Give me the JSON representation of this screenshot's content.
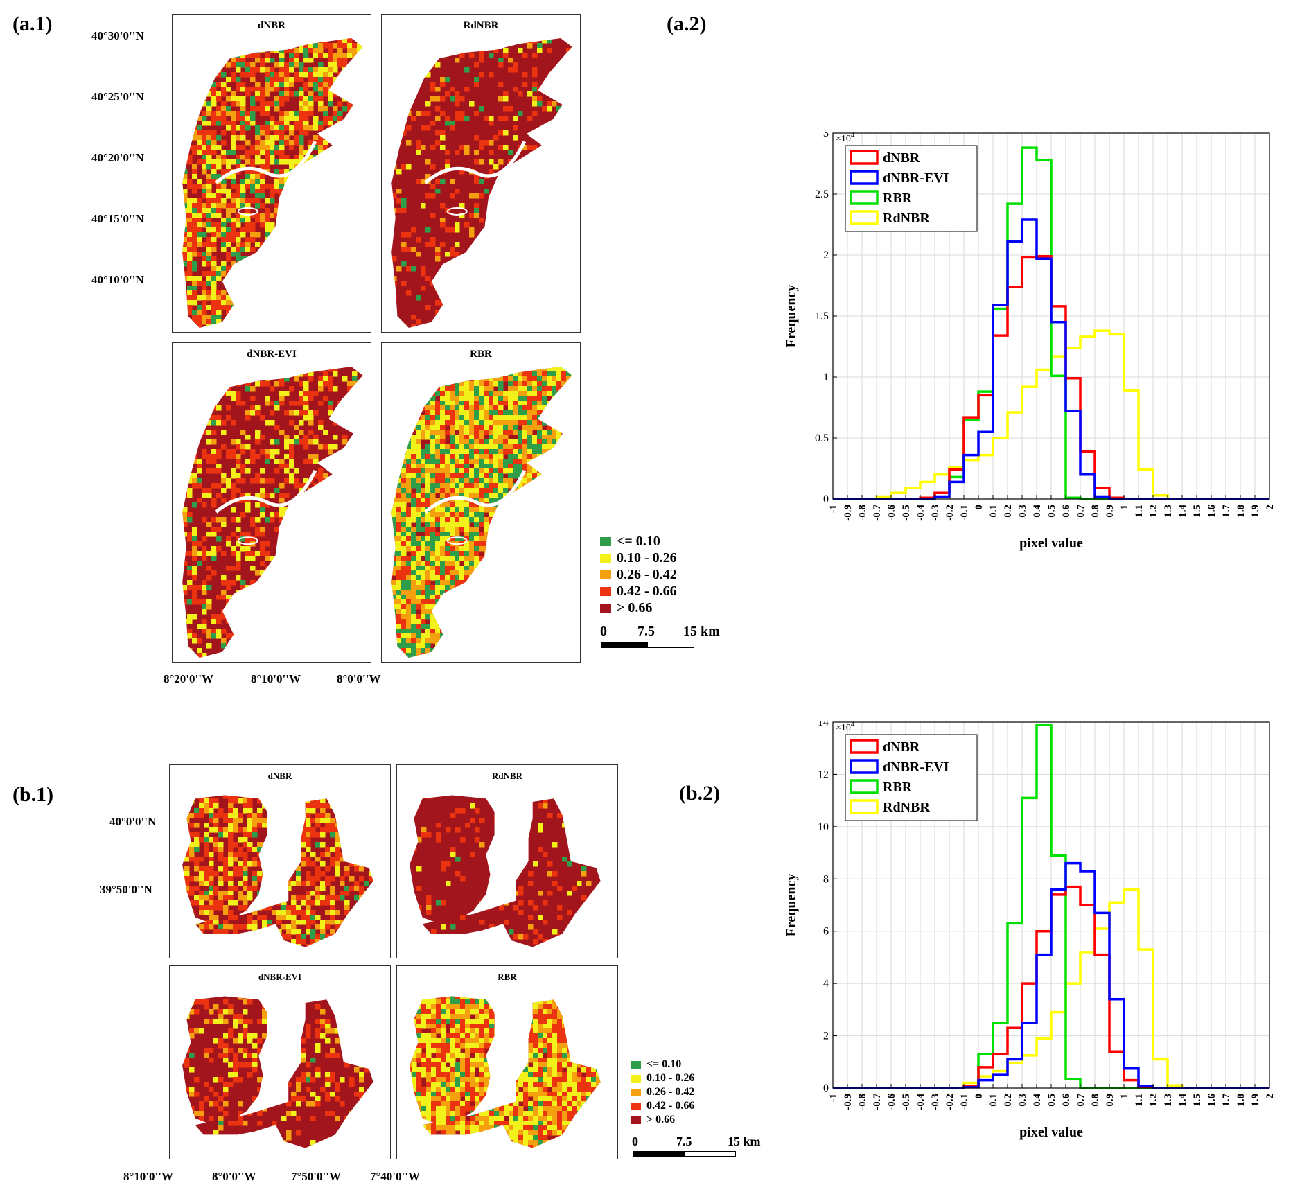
{
  "panel_labels": {
    "a1": "(a.1)",
    "a2": "(a.2)",
    "b1": "(b.1)",
    "b2": "(b.2)"
  },
  "colors": {
    "c1": "#2e9e4a",
    "c2": "#f2f21a",
    "c3": "#f5a00f",
    "c4": "#ec3310",
    "c5": "#a3151c",
    "dNBR": "#ff0000",
    "dNBR-EVI": "#0000ff",
    "RBR": "#00e000",
    "RdNBR": "#ffff00"
  },
  "legend_a": {
    "items": [
      "<= 0.10",
      "0.10 - 0.26",
      "0.26 - 0.42",
      "0.42 - 0.66",
      "> 0.66"
    ],
    "scale": {
      "start": "0",
      "mid": "7.5",
      "end": "15 km"
    }
  },
  "legend_b": {
    "items": [
      "<= 0.10",
      "0.10 - 0.26",
      "0.26 - 0.42",
      "0.42 - 0.66",
      "> 0.66"
    ],
    "scale": {
      "start": "0",
      "mid": "7.5",
      "end": "15 km"
    }
  },
  "maps_a": {
    "titles": {
      "tl": "dNBR",
      "tr": "RdNBR",
      "bl": "dNBR-EVI",
      "br": "RBR"
    },
    "lat": [
      "40°30'0''N",
      "40°25'0''N",
      "40°20'0''N",
      "40°15'0''N",
      "40°10'0''N"
    ],
    "lon": [
      "8°20'0''W",
      "8°10'0''W",
      "8°0'0''W"
    ]
  },
  "maps_b": {
    "titles": {
      "tl": "dNBR",
      "tr": "RdNBR",
      "bl": "dNBR-EVI",
      "br": "RBR"
    },
    "lat": [
      "40°0'0''N",
      "39°50'0''N"
    ],
    "lon": [
      "8°10'0''W",
      "8°0'0''W",
      "7°50'0''W",
      "7°40'0''W"
    ]
  },
  "chart_data": [
    {
      "id": "a2",
      "type": "histogram-step",
      "xlabel": "pixel value",
      "ylabel": "Frequency",
      "y_exponent": "×10^4",
      "xlim": [
        -1,
        2
      ],
      "ylim": [
        0,
        3
      ],
      "x_ticks": [
        "-1",
        "-0.9",
        "-0.8",
        "-0.7",
        "-0.6",
        "-0.5",
        "-0.4",
        "-0.3",
        "-0.2",
        "-0.1",
        "0",
        "0.1",
        "0.2",
        "0.3",
        "0.4",
        "0.5",
        "0.6",
        "0.7",
        "0.8",
        "0.9",
        "1",
        "1.1",
        "1.2",
        "1.3",
        "1.4",
        "1.5",
        "1.6",
        "1.7",
        "1.8",
        "1.9",
        "2"
      ],
      "y_ticks": [
        "0",
        "0.5",
        "1",
        "1.5",
        "2",
        "2.5",
        "3"
      ],
      "bins": [
        -1,
        -0.9,
        -0.8,
        -0.7,
        -0.6,
        -0.5,
        -0.4,
        -0.3,
        -0.2,
        -0.1,
        0,
        0.1,
        0.2,
        0.3,
        0.4,
        0.5,
        0.6,
        0.7,
        0.8,
        0.9,
        1,
        1.1,
        1.2,
        1.3,
        1.4,
        1.5,
        1.6,
        1.7,
        1.8,
        1.9,
        2
      ],
      "legend": [
        "dNBR",
        "dNBR-EVI",
        "RBR",
        "RdNBR"
      ],
      "series": [
        {
          "name": "RdNBR",
          "values": [
            0,
            0,
            0,
            0.02,
            0.05,
            0.09,
            0.14,
            0.2,
            0.26,
            0.32,
            0.36,
            0.5,
            0.71,
            0.92,
            1.06,
            1.17,
            1.24,
            1.33,
            1.38,
            1.35,
            0.89,
            0.24,
            0.03,
            0,
            0,
            0,
            0,
            0,
            0,
            0
          ]
        },
        {
          "name": "RBR",
          "values": [
            0,
            0,
            0,
            0,
            0,
            0,
            0,
            0.05,
            0.18,
            0.65,
            0.88,
            1.56,
            2.42,
            2.88,
            2.78,
            1.01,
            0.01,
            0,
            0,
            0,
            0,
            0,
            0,
            0,
            0,
            0,
            0,
            0,
            0,
            0
          ]
        },
        {
          "name": "dNBR",
          "values": [
            0,
            0,
            0,
            0,
            0,
            0,
            0.01,
            0.05,
            0.24,
            0.67,
            0.85,
            1.34,
            1.74,
            1.98,
            1.99,
            1.58,
            0.99,
            0.39,
            0.09,
            0.01,
            0,
            0,
            0,
            0,
            0,
            0,
            0,
            0,
            0,
            0
          ]
        },
        {
          "name": "dNBR-EVI",
          "values": [
            0,
            0,
            0,
            0,
            0,
            0,
            0,
            0.02,
            0.14,
            0.36,
            0.55,
            1.59,
            2.11,
            2.29,
            1.97,
            1.45,
            0.72,
            0.2,
            0.02,
            0,
            0,
            0,
            0,
            0,
            0,
            0,
            0,
            0,
            0,
            0
          ]
        }
      ]
    },
    {
      "id": "b2",
      "type": "histogram-step",
      "xlabel": "pixel value",
      "ylabel": "Frequency",
      "y_exponent": "×10^4",
      "xlim": [
        -1,
        2
      ],
      "ylim": [
        0,
        14
      ],
      "x_ticks": [
        "-1",
        "-0.9",
        "-0.8",
        "-0.7",
        "-0.6",
        "-0.5",
        "-0.4",
        "-0.3",
        "-0.2",
        "-0.1",
        "0",
        "0.1",
        "0.2",
        "0.3",
        "0.4",
        "0.5",
        "0.6",
        "0.7",
        "0.8",
        "0.9",
        "1",
        "1.1",
        "1.2",
        "1.3",
        "1.4",
        "1.5",
        "1.6",
        "1.7",
        "1.8",
        "1.9",
        "2"
      ],
      "y_ticks": [
        "0",
        "2",
        "4",
        "6",
        "8",
        "10",
        "12",
        "14"
      ],
      "bins": [
        -1,
        -0.9,
        -0.8,
        -0.7,
        -0.6,
        -0.5,
        -0.4,
        -0.3,
        -0.2,
        -0.1,
        0,
        0.1,
        0.2,
        0.3,
        0.4,
        0.5,
        0.6,
        0.7,
        0.8,
        0.9,
        1,
        1.1,
        1.2,
        1.3,
        1.4,
        1.5,
        1.6,
        1.7,
        1.8,
        1.9,
        2
      ],
      "legend": [
        "dNBR",
        "dNBR-EVI",
        "RBR",
        "RdNBR"
      ],
      "series": [
        {
          "name": "RdNBR",
          "values": [
            0,
            0,
            0,
            0,
            0,
            0,
            0,
            0,
            0,
            0.2,
            0.45,
            0.65,
            0.95,
            1.25,
            1.9,
            2.9,
            4.0,
            5.2,
            6.1,
            7.1,
            7.6,
            5.3,
            1.1,
            0.1,
            0,
            0,
            0,
            0,
            0,
            0
          ]
        },
        {
          "name": "RBR",
          "values": [
            0,
            0,
            0,
            0,
            0,
            0,
            0,
            0,
            0,
            0.05,
            1.3,
            2.5,
            6.3,
            11.1,
            13.9,
            8.9,
            0.35,
            0,
            0,
            0,
            0,
            0,
            0,
            0,
            0,
            0,
            0,
            0,
            0,
            0
          ]
        },
        {
          "name": "dNBR",
          "values": [
            0,
            0,
            0,
            0,
            0,
            0,
            0,
            0,
            0,
            0.08,
            0.8,
            1.3,
            2.3,
            4.0,
            6.0,
            7.4,
            7.7,
            7.0,
            5.1,
            1.4,
            0.3,
            0.05,
            0,
            0,
            0,
            0,
            0,
            0,
            0,
            0
          ]
        },
        {
          "name": "dNBR-EVI",
          "values": [
            0,
            0,
            0,
            0,
            0,
            0,
            0,
            0,
            0,
            0.03,
            0.3,
            0.5,
            1.1,
            2.5,
            5.1,
            7.6,
            8.6,
            8.3,
            6.7,
            3.4,
            0.75,
            0.08,
            0,
            0,
            0,
            0,
            0,
            0,
            0,
            0
          ]
        }
      ]
    }
  ]
}
